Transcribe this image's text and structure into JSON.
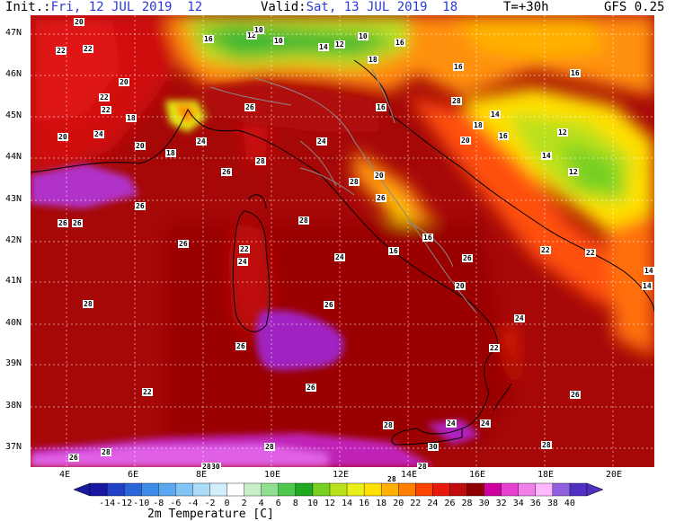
{
  "header": {
    "init_label": "Init.:",
    "init_value": "Fri, 12 JUL 2019  12",
    "valid_label": "Valid:",
    "valid_value": "Sat, 13 JUL 2019  18",
    "lead": "T=+30h",
    "model": "GFS 0.25"
  },
  "axes": {
    "lat_labels": [
      "47N",
      "46N",
      "45N",
      "44N",
      "43N",
      "42N",
      "41N",
      "40N",
      "39N",
      "38N",
      "37N"
    ],
    "lon_labels": [
      "4E",
      "6E",
      "8E",
      "10E",
      "12E",
      "14E",
      "16E",
      "18E",
      "20E"
    ]
  },
  "colorbar": {
    "title": "2m Temperature [C]",
    "ticks": [
      "-14",
      "-12",
      "-10",
      "-8",
      "-6",
      "-4",
      "-2",
      "0",
      "2",
      "4",
      "6",
      "8",
      "10",
      "12",
      "14",
      "16",
      "18",
      "20",
      "22",
      "24",
      "26",
      "28",
      "30",
      "32",
      "34",
      "36",
      "38",
      "40"
    ],
    "colors": [
      "#1818a0",
      "#2040c8",
      "#2a64d8",
      "#3c8ce8",
      "#5aa8f0",
      "#82c4f4",
      "#aadcf8",
      "#d2eefa",
      "#ffffff",
      "#c8f0c8",
      "#8ee08e",
      "#4cc84c",
      "#20a820",
      "#78d020",
      "#b8e01c",
      "#e8f018",
      "#ffe000",
      "#ffb000",
      "#ff8000",
      "#ff4400",
      "#e81a10",
      "#c00c0c",
      "#900000",
      "#d000a0",
      "#e840d0",
      "#f080e8",
      "#ffb8ff",
      "#9060e0",
      "#5030c0"
    ]
  },
  "map_labels": [
    {
      "t": "20"
    },
    {
      "t": "22"
    },
    {
      "t": "22"
    },
    {
      "t": "16"
    },
    {
      "t": "12"
    },
    {
      "t": "10"
    },
    {
      "t": "10"
    },
    {
      "t": "14"
    },
    {
      "t": "12"
    },
    {
      "t": "10"
    },
    {
      "t": "16"
    },
    {
      "t": "18"
    },
    {
      "t": "16"
    },
    {
      "t": "20"
    },
    {
      "t": "22"
    },
    {
      "t": "22"
    },
    {
      "t": "18"
    },
    {
      "t": "24"
    },
    {
      "t": "20"
    },
    {
      "t": "20"
    },
    {
      "t": "18"
    },
    {
      "t": "26"
    },
    {
      "t": "26"
    },
    {
      "t": "24"
    },
    {
      "t": "28"
    },
    {
      "t": "24"
    },
    {
      "t": "20"
    },
    {
      "t": "26"
    },
    {
      "t": "28"
    },
    {
      "t": "28"
    },
    {
      "t": "18"
    },
    {
      "t": "20"
    },
    {
      "t": "14"
    },
    {
      "t": "16"
    },
    {
      "t": "14"
    },
    {
      "t": "12"
    },
    {
      "t": "16"
    },
    {
      "t": "16"
    },
    {
      "t": "26"
    },
    {
      "t": "26"
    },
    {
      "t": "22"
    },
    {
      "t": "24"
    },
    {
      "t": "26"
    },
    {
      "t": "24"
    },
    {
      "t": "16"
    },
    {
      "t": "22"
    },
    {
      "t": "22"
    },
    {
      "t": "14"
    },
    {
      "t": "28"
    },
    {
      "t": "26"
    },
    {
      "t": "28"
    },
    {
      "t": "20"
    },
    {
      "t": "26"
    },
    {
      "t": "26"
    },
    {
      "t": "24"
    },
    {
      "t": "22"
    },
    {
      "t": "26"
    },
    {
      "t": "22"
    },
    {
      "t": "28"
    },
    {
      "t": "24"
    },
    {
      "t": "28"
    },
    {
      "t": "28"
    },
    {
      "t": "26"
    },
    {
      "t": "30"
    },
    {
      "t": "28"
    },
    {
      "t": "28"
    },
    {
      "t": "30"
    },
    {
      "t": "26"
    },
    {
      "t": "28"
    },
    {
      "t": "24"
    },
    {
      "t": "26"
    },
    {
      "t": "28"
    },
    {
      "t": "14"
    },
    {
      "t": "16"
    },
    {
      "t": "12"
    }
  ]
}
